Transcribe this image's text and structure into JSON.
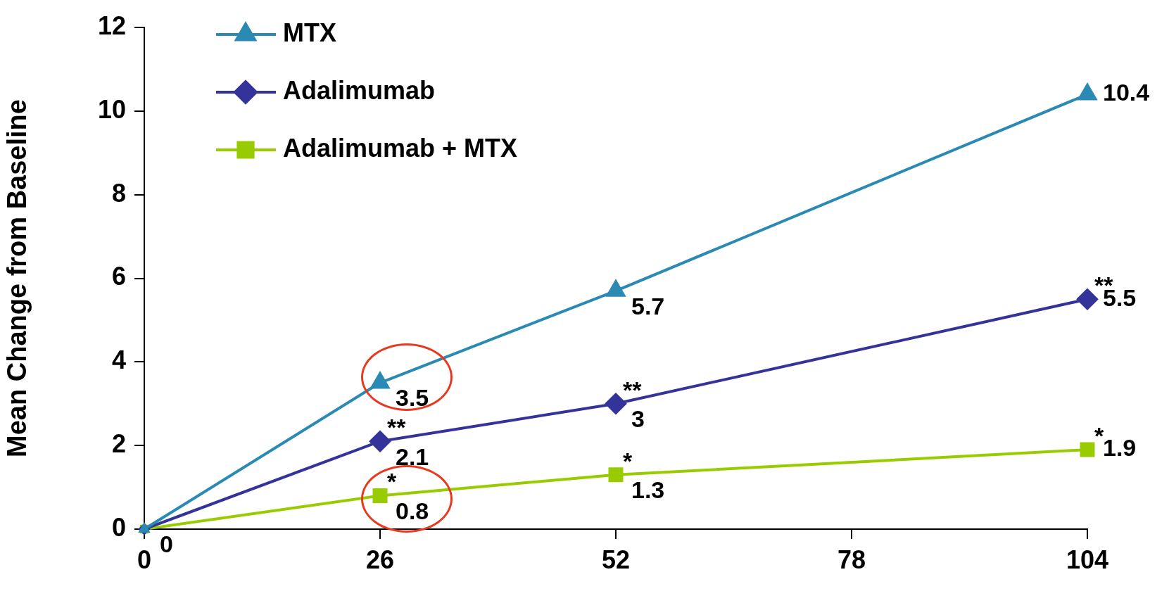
{
  "chart_data": {
    "type": "line",
    "ylabel": "Mean Change from Baseline",
    "x": [
      0,
      26,
      52,
      104
    ],
    "xlim": [
      0,
      104
    ],
    "xticks": [
      0,
      26,
      52,
      78,
      104
    ],
    "ylim": [
      0,
      12
    ],
    "yticks": [
      0,
      2,
      4,
      6,
      8,
      10,
      12
    ],
    "grid": false,
    "legend": "top left",
    "line_style": "solid",
    "series": [
      {
        "name": "MTX",
        "color": "#2a8ab4",
        "marker": "triangle",
        "values": [
          0,
          3.5,
          5.7,
          10.4
        ],
        "value_labels": [
          "0",
          "3.5",
          "5.7",
          "10.4"
        ]
      },
      {
        "name": "Adalimumab",
        "color": "#33339a",
        "marker": "diamond",
        "values": [
          0,
          2.1,
          3,
          5.5
        ],
        "value_labels": [
          null,
          "2.1",
          "3",
          "5.5"
        ]
      },
      {
        "name": "Adalimumab + MTX",
        "color": "#99cc00",
        "marker": "square",
        "values": [
          0,
          0.8,
          1.3,
          1.9
        ],
        "value_labels": [
          null,
          "0.8",
          "1.3",
          "1.9"
        ]
      }
    ],
    "annotations": [
      {
        "text": "**",
        "x": 26,
        "y": 2.1
      },
      {
        "text": "**",
        "x": 52,
        "y": 3
      },
      {
        "text": "**",
        "x": 104,
        "y": 5.5
      },
      {
        "text": "*",
        "x": 26,
        "y": 0.8
      },
      {
        "text": "*",
        "x": 52,
        "y": 1.3
      },
      {
        "text": "*",
        "x": 104,
        "y": 1.9
      }
    ]
  }
}
